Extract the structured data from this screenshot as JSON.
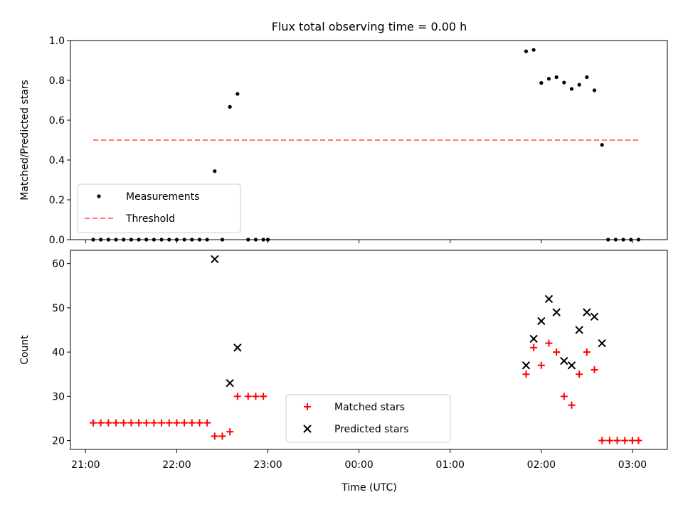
{
  "figure": {
    "title": "Flux total observing time = 0.00 h",
    "xlabel": "Time (UTC)"
  },
  "chart_data": [
    {
      "type": "scatter",
      "title": "Flux total observing time = 0.00 h",
      "ylabel": "Matched/Predicted stars",
      "ylim": [
        0,
        1.0
      ],
      "yticks": [
        "0.0",
        "0.2",
        "0.4",
        "0.6",
        "0.8",
        "1.0"
      ],
      "xlim": [
        "20:50",
        "03:23"
      ],
      "xticks": [],
      "grid": false,
      "legend": {
        "placement": "lower-left",
        "entries": [
          "Measurements",
          "Threshold"
        ]
      },
      "series": [
        {
          "name": "Measurements",
          "marker": "dot",
          "color": "#000000",
          "points": [
            {
              "x": "21:05",
              "y": 0.0
            },
            {
              "x": "21:10",
              "y": 0.0
            },
            {
              "x": "21:15",
              "y": 0.0
            },
            {
              "x": "21:20",
              "y": 0.0
            },
            {
              "x": "21:25",
              "y": 0.0
            },
            {
              "x": "21:30",
              "y": 0.0
            },
            {
              "x": "21:35",
              "y": 0.0
            },
            {
              "x": "21:40",
              "y": 0.0
            },
            {
              "x": "21:45",
              "y": 0.0
            },
            {
              "x": "21:50",
              "y": 0.0
            },
            {
              "x": "21:55",
              "y": 0.0
            },
            {
              "x": "22:00",
              "y": 0.0
            },
            {
              "x": "22:05",
              "y": 0.0
            },
            {
              "x": "22:10",
              "y": 0.0
            },
            {
              "x": "22:15",
              "y": 0.0
            },
            {
              "x": "22:20",
              "y": 0.0
            },
            {
              "x": "22:25",
              "y": 0.344
            },
            {
              "x": "22:30",
              "y": 0.0
            },
            {
              "x": "22:35",
              "y": 0.667
            },
            {
              "x": "22:40",
              "y": 0.732
            },
            {
              "x": "22:47",
              "y": 0.0
            },
            {
              "x": "22:52",
              "y": 0.0
            },
            {
              "x": "22:57",
              "y": 0.0
            },
            {
              "x": "23:00",
              "y": 0.0
            },
            {
              "x": "01:50",
              "y": 0.946
            },
            {
              "x": "01:55",
              "y": 0.953
            },
            {
              "x": "02:00",
              "y": 0.787
            },
            {
              "x": "02:05",
              "y": 0.808
            },
            {
              "x": "02:10",
              "y": 0.816
            },
            {
              "x": "02:15",
              "y": 0.789
            },
            {
              "x": "02:20",
              "y": 0.757
            },
            {
              "x": "02:25",
              "y": 0.778
            },
            {
              "x": "02:30",
              "y": 0.816
            },
            {
              "x": "02:35",
              "y": 0.75
            },
            {
              "x": "02:40",
              "y": 0.476
            },
            {
              "x": "02:44",
              "y": 0.0
            },
            {
              "x": "02:49",
              "y": 0.0
            },
            {
              "x": "02:54",
              "y": 0.0
            },
            {
              "x": "02:59",
              "y": 0.0
            },
            {
              "x": "03:04",
              "y": 0.0
            }
          ]
        },
        {
          "name": "Threshold",
          "style": "dashed",
          "color": "#ff7777",
          "points": [
            {
              "x": "21:05",
              "y": 0.5
            },
            {
              "x": "03:04",
              "y": 0.5
            }
          ]
        }
      ]
    },
    {
      "type": "scatter",
      "ylabel": "Count",
      "ylim": [
        18,
        63
      ],
      "yticks": [
        "20",
        "30",
        "40",
        "50",
        "60"
      ],
      "xlim": [
        "20:50",
        "03:23"
      ],
      "xticks": [
        "21:00",
        "22:00",
        "23:00",
        "00:00",
        "01:00",
        "02:00",
        "03:00"
      ],
      "grid": false,
      "legend": {
        "placement": "lower-center",
        "entries": [
          "Matched stars",
          "Predicted stars"
        ]
      },
      "series": [
        {
          "name": "Matched stars",
          "marker": "plus",
          "color": "#ff0000",
          "points": [
            {
              "x": "21:05",
              "y": 24
            },
            {
              "x": "21:10",
              "y": 24
            },
            {
              "x": "21:15",
              "y": 24
            },
            {
              "x": "21:20",
              "y": 24
            },
            {
              "x": "21:25",
              "y": 24
            },
            {
              "x": "21:30",
              "y": 24
            },
            {
              "x": "21:35",
              "y": 24
            },
            {
              "x": "21:40",
              "y": 24
            },
            {
              "x": "21:45",
              "y": 24
            },
            {
              "x": "21:50",
              "y": 24
            },
            {
              "x": "21:55",
              "y": 24
            },
            {
              "x": "22:00",
              "y": 24
            },
            {
              "x": "22:05",
              "y": 24
            },
            {
              "x": "22:10",
              "y": 24
            },
            {
              "x": "22:15",
              "y": 24
            },
            {
              "x": "22:20",
              "y": 24
            },
            {
              "x": "22:25",
              "y": 21
            },
            {
              "x": "22:30",
              "y": 21
            },
            {
              "x": "22:35",
              "y": 22
            },
            {
              "x": "22:40",
              "y": 30
            },
            {
              "x": "22:47",
              "y": 30
            },
            {
              "x": "22:52",
              "y": 30
            },
            {
              "x": "22:57",
              "y": 30
            },
            {
              "x": "01:50",
              "y": 35
            },
            {
              "x": "01:55",
              "y": 41
            },
            {
              "x": "02:00",
              "y": 37
            },
            {
              "x": "02:05",
              "y": 42
            },
            {
              "x": "02:10",
              "y": 40
            },
            {
              "x": "02:15",
              "y": 30
            },
            {
              "x": "02:20",
              "y": 28
            },
            {
              "x": "02:25",
              "y": 35
            },
            {
              "x": "02:30",
              "y": 40
            },
            {
              "x": "02:35",
              "y": 36
            },
            {
              "x": "02:40",
              "y": 20
            },
            {
              "x": "02:45",
              "y": 20
            },
            {
              "x": "02:50",
              "y": 20
            },
            {
              "x": "02:55",
              "y": 20
            },
            {
              "x": "03:00",
              "y": 20
            },
            {
              "x": "03:04",
              "y": 20
            }
          ]
        },
        {
          "name": "Predicted stars",
          "marker": "x",
          "color": "#000000",
          "points": [
            {
              "x": "22:25",
              "y": 61
            },
            {
              "x": "22:35",
              "y": 33
            },
            {
              "x": "22:40",
              "y": 41
            },
            {
              "x": "01:50",
              "y": 37
            },
            {
              "x": "01:55",
              "y": 43
            },
            {
              "x": "02:00",
              "y": 47
            },
            {
              "x": "02:05",
              "y": 52
            },
            {
              "x": "02:10",
              "y": 49
            },
            {
              "x": "02:15",
              "y": 38
            },
            {
              "x": "02:20",
              "y": 37
            },
            {
              "x": "02:25",
              "y": 45
            },
            {
              "x": "02:30",
              "y": 49
            },
            {
              "x": "02:35",
              "y": 48
            },
            {
              "x": "02:40",
              "y": 42
            }
          ]
        }
      ]
    }
  ]
}
